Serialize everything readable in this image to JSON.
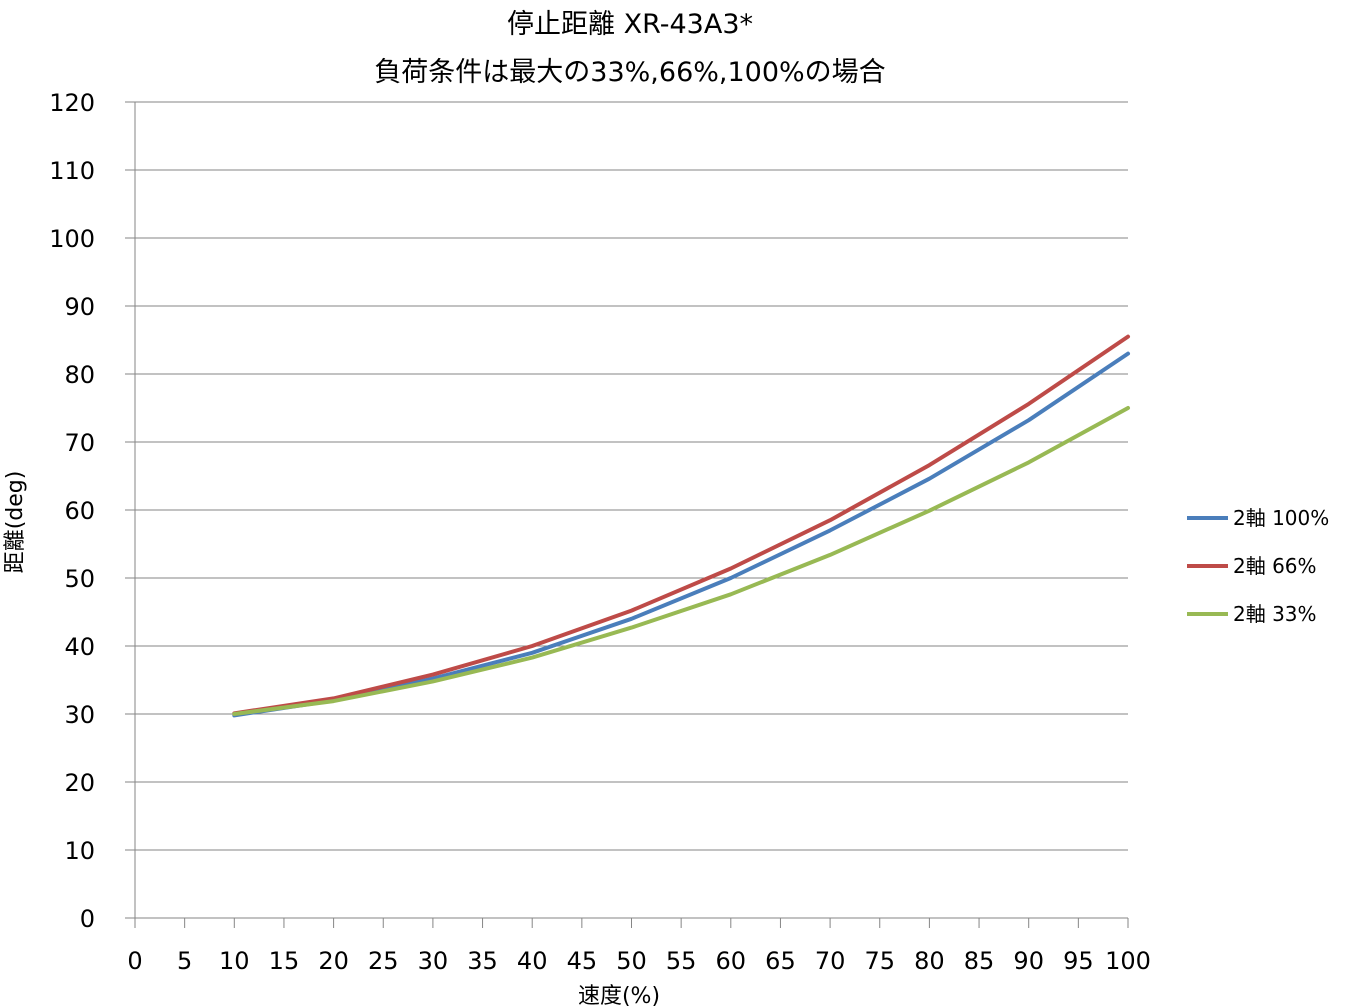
{
  "chart_data": {
    "type": "line",
    "title": "停止距離 XR-43A3*",
    "subtitle": "負荷条件は最大の33%,66%,100%の場合",
    "xlabel": "速度(%)",
    "ylabel": "距離(deg)",
    "xlim": [
      0,
      100
    ],
    "ylim": [
      0,
      120
    ],
    "x_ticks": [
      "0",
      "5",
      "10",
      "15",
      "20",
      "25",
      "30",
      "35",
      "40",
      "45",
      "50",
      "55",
      "60",
      "65",
      "70",
      "75",
      "80",
      "85",
      "90",
      "95",
      "100"
    ],
    "y_ticks": [
      "0",
      "10",
      "20",
      "30",
      "40",
      "50",
      "60",
      "70",
      "80",
      "90",
      "100",
      "110",
      "120"
    ],
    "x": [
      10,
      20,
      30,
      40,
      50,
      60,
      70,
      80,
      90,
      100
    ],
    "grid": "horizontal",
    "legend_position": "right",
    "series": [
      {
        "name": "2軸 100%",
        "color": "#4a7ebb",
        "values": [
          29.8,
          32.0,
          35.2,
          39.0,
          44.0,
          50.0,
          57.0,
          64.6,
          73.2,
          83.0
        ]
      },
      {
        "name": "2軸 66%",
        "color": "#be4b48",
        "values": [
          30.1,
          32.3,
          35.8,
          40.0,
          45.2,
          51.4,
          58.5,
          66.6,
          75.6,
          85.5
        ]
      },
      {
        "name": "2軸 33%",
        "color": "#98b954",
        "values": [
          30.0,
          31.9,
          34.8,
          38.3,
          42.7,
          47.6,
          53.4,
          59.9,
          67.0,
          75.0
        ]
      }
    ]
  }
}
